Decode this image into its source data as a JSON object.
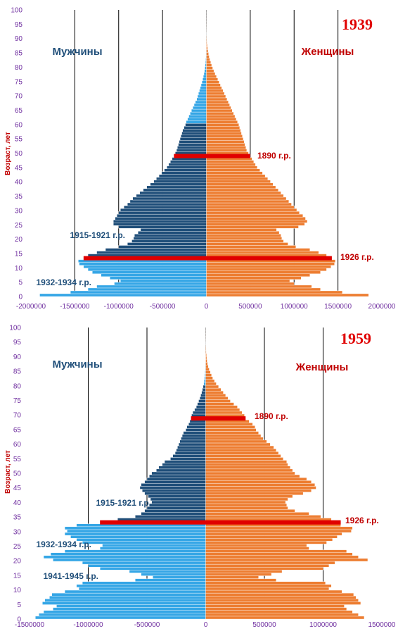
{
  "chart_data": [
    {
      "type": "bar",
      "orientation": "horizontal",
      "year_label": "1939",
      "ylabel": "Возраст, лет",
      "men_label": "Мужчины",
      "women_label": "Женщины",
      "xlim": [
        -2000000,
        2000000
      ],
      "x_ticks": [
        "-2000000",
        "-1500000",
        "-1000000",
        "-500000",
        "0",
        "500000",
        "1000000",
        "1500000",
        "2000000"
      ],
      "y_ticks": [
        "0",
        "5",
        "10",
        "15",
        "20",
        "25",
        "30",
        "35",
        "40",
        "45",
        "50",
        "55",
        "60",
        "65",
        "70",
        "75",
        "80",
        "85",
        "90",
        "95",
        "100"
      ],
      "annotations": [
        {
          "text": "1890 г.р.",
          "side": "female",
          "age": 49
        },
        {
          "text": "1926 г.р.",
          "side": "female",
          "age": 13
        },
        {
          "text": "1915-1921 г.р.",
          "side": "male",
          "age": 21
        },
        {
          "text": "1932-1934 г.р.",
          "side": "male",
          "age": 5
        }
      ],
      "highlight_ages": [
        13,
        49
      ],
      "dark_male_ages": [
        14,
        60
      ],
      "male": [
        1900000,
        1550000,
        1350000,
        1250000,
        1050000,
        980000,
        1100000,
        1200000,
        1300000,
        1350000,
        1400000,
        1450000,
        1460000,
        1400000,
        1350000,
        1250000,
        1150000,
        1000000,
        900000,
        850000,
        830000,
        820000,
        780000,
        750000,
        1000000,
        1060000,
        1060000,
        1040000,
        1020000,
        1000000,
        980000,
        940000,
        900000,
        870000,
        840000,
        800000,
        760000,
        720000,
        680000,
        640000,
        600000,
        570000,
        540000,
        510000,
        480000,
        450000,
        430000,
        410000,
        390000,
        370000,
        355000,
        340000,
        330000,
        320000,
        310000,
        300000,
        290000,
        280000,
        270000,
        255000,
        240000,
        230000,
        215000,
        200000,
        185000,
        170000,
        155000,
        140000,
        125000,
        110000,
        100000,
        90000,
        80000,
        70000,
        60000,
        50000,
        42000,
        35000,
        28000,
        22000,
        17000,
        13000,
        10000,
        8000,
        6000,
        4500,
        3500,
        2500,
        2000,
        1500,
        1200,
        900,
        700,
        500,
        400,
        300,
        200,
        150,
        100,
        80,
        50
      ],
      "female": [
        1850000,
        1550000,
        1300000,
        1200000,
        1000000,
        950000,
        1080000,
        1180000,
        1300000,
        1370000,
        1420000,
        1460000,
        1470000,
        1430000,
        1370000,
        1280000,
        1180000,
        1020000,
        930000,
        880000,
        860000,
        850000,
        830000,
        800000,
        1050000,
        1120000,
        1150000,
        1130000,
        1100000,
        1060000,
        1030000,
        1000000,
        970000,
        940000,
        910000,
        880000,
        850000,
        820000,
        790000,
        760000,
        730000,
        700000,
        670000,
        640000,
        610000,
        580000,
        560000,
        540000,
        520000,
        500000,
        480000,
        460000,
        450000,
        440000,
        430000,
        420000,
        410000,
        400000,
        390000,
        380000,
        370000,
        355000,
        340000,
        325000,
        310000,
        295000,
        280000,
        265000,
        250000,
        235000,
        220000,
        205000,
        190000,
        175000,
        160000,
        145000,
        130000,
        115000,
        100000,
        85000,
        72000,
        60000,
        50000,
        40000,
        32000,
        25000,
        19000,
        14000,
        10000,
        7000,
        5000,
        3500,
        2500,
        1800,
        1300,
        900,
        600,
        400,
        250,
        150,
        100
      ]
    },
    {
      "type": "bar",
      "orientation": "horizontal",
      "year_label": "1959",
      "ylabel": "Возраст, лет",
      "men_label": "Мужчины",
      "women_label": "Женщины",
      "xlim": [
        -1500000,
        1500000
      ],
      "x_ticks": [
        "-1500000",
        "-1000000",
        "-500000",
        "0",
        "500000",
        "1000000",
        "1500000"
      ],
      "y_ticks": [
        "0",
        "5",
        "10",
        "15",
        "20",
        "25",
        "30",
        "35",
        "40",
        "45",
        "50",
        "55",
        "60",
        "65",
        "70",
        "75",
        "80",
        "85",
        "90",
        "95",
        "100"
      ],
      "annotations": [
        {
          "text": "1890 г.р.",
          "side": "female",
          "age": 69
        },
        {
          "text": "1926 г.р.",
          "side": "female",
          "age": 33
        },
        {
          "text": "1915-1921 г.р.",
          "side": "male",
          "age": 40
        },
        {
          "text": "1932-1934 г.р.",
          "side": "male",
          "age": 25
        },
        {
          "text": "1941-1945 г.р.",
          "side": "male",
          "age": 14
        }
      ],
      "highlight_ages": [
        33,
        69
      ],
      "dark_male_ages": [
        34,
        80
      ],
      "male": [
        1450000,
        1420000,
        1380000,
        1300000,
        1270000,
        1390000,
        1370000,
        1330000,
        1310000,
        1200000,
        1080000,
        1100000,
        1050000,
        600000,
        450000,
        550000,
        650000,
        900000,
        1000000,
        1050000,
        1300000,
        1380000,
        1320000,
        1200000,
        900000,
        880000,
        1050000,
        1100000,
        1150000,
        1200000,
        1180000,
        1200000,
        1100000,
        900000,
        750000,
        600000,
        550000,
        520000,
        500000,
        480000,
        460000,
        470000,
        490000,
        520000,
        540000,
        560000,
        550000,
        520000,
        500000,
        480000,
        460000,
        420000,
        400000,
        370000,
        350000,
        300000,
        280000,
        260000,
        250000,
        240000,
        230000,
        220000,
        210000,
        200000,
        190000,
        170000,
        160000,
        145000,
        135000,
        125000,
        120000,
        110000,
        95000,
        80000,
        70000,
        60000,
        50000,
        42000,
        35000,
        28000,
        22000,
        17000,
        13000,
        10000,
        8000,
        6000,
        4500,
        3500,
        2500,
        2000,
        1500,
        1200,
        900,
        700,
        500,
        400,
        300,
        200,
        150,
        100,
        80
      ],
      "female": [
        1350000,
        1300000,
        1250000,
        1200000,
        1180000,
        1320000,
        1300000,
        1280000,
        1260000,
        1160000,
        1050000,
        1070000,
        1020000,
        600000,
        450000,
        560000,
        650000,
        1000000,
        1050000,
        1100000,
        1380000,
        1300000,
        1250000,
        1200000,
        880000,
        860000,
        1030000,
        1080000,
        1120000,
        1160000,
        1240000,
        1250000,
        1150000,
        1150000,
        1070000,
        980000,
        880000,
        760000,
        700000,
        690000,
        680000,
        700000,
        740000,
        830000,
        900000,
        940000,
        930000,
        900000,
        860000,
        800000,
        760000,
        740000,
        720000,
        700000,
        690000,
        660000,
        640000,
        620000,
        600000,
        580000,
        550000,
        520000,
        490000,
        470000,
        450000,
        430000,
        420000,
        400000,
        370000,
        340000,
        330000,
        310000,
        290000,
        270000,
        240000,
        210000,
        190000,
        170000,
        150000,
        130000,
        110000,
        90000,
        75000,
        60000,
        50000,
        40000,
        30000,
        22000,
        16000,
        12000,
        9000,
        7000,
        5000,
        3500,
        2500,
        1800,
        1300,
        900,
        600,
        400,
        250
      ]
    }
  ]
}
